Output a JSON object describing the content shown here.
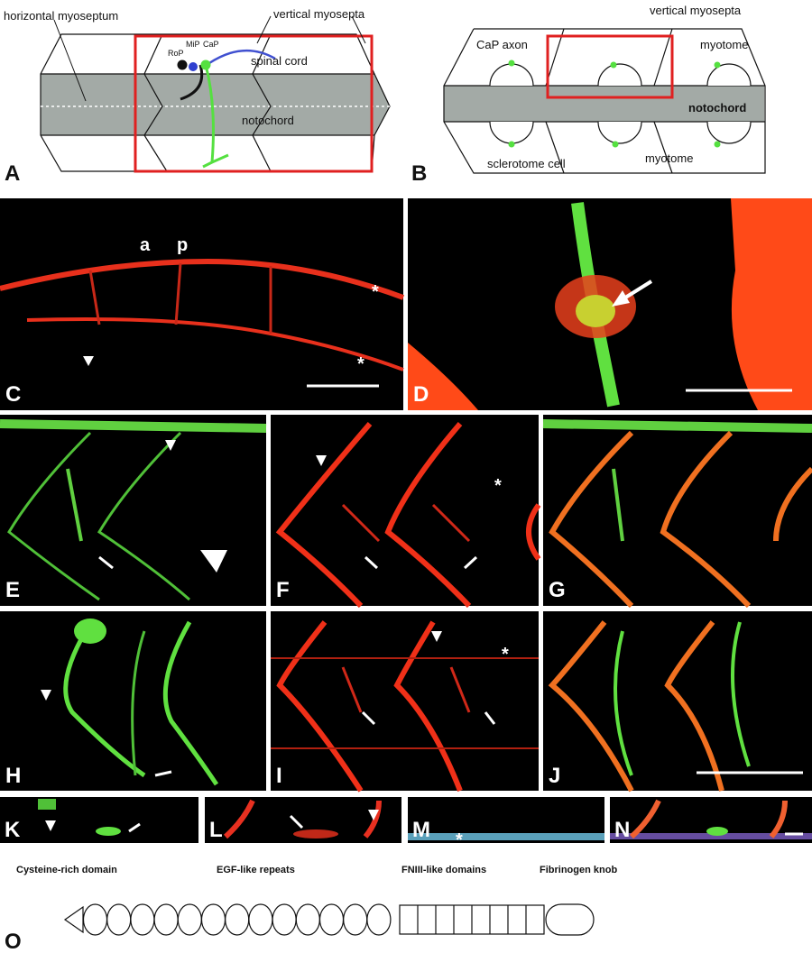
{
  "panel_a": {
    "letter": "A",
    "horizontal_myoseptum": "horizontal myoseptum",
    "vertical_myosepta": "vertical myosepta",
    "rop": "RoP",
    "mip": "MiP",
    "cap": "CaP",
    "spinal_cord": "spinal cord",
    "notochord": "notochord"
  },
  "panel_b": {
    "letter": "B",
    "vertical_myosepta": "vertical myosepta",
    "cap_axon": "CaP axon",
    "myotome_top": "myotome",
    "notochord": "notochord",
    "sclerotome_cell": "sclerotome cell",
    "myotome_bottom": "myotome"
  },
  "panel_c": {
    "letter": "C",
    "anterior": "a",
    "posterior": "p",
    "asterisk_top": "*",
    "asterisk_bottom": "*"
  },
  "panel_d": {
    "letter": "D"
  },
  "panel_e": {
    "letter": "E"
  },
  "panel_f": {
    "letter": "F",
    "asterisk": "*"
  },
  "panel_g": {
    "letter": "G"
  },
  "panel_h": {
    "letter": "H"
  },
  "panel_i": {
    "letter": "I",
    "asterisk": "*"
  },
  "panel_j": {
    "letter": "J"
  },
  "panel_k": {
    "letter": "K"
  },
  "panel_l": {
    "letter": "L"
  },
  "panel_m": {
    "letter": "M",
    "asterisk": "*"
  },
  "panel_n": {
    "letter": "N"
  },
  "panel_o": {
    "letter": "O",
    "cysteine": "Cysteine-rich domain",
    "egf": "EGF-like repeats",
    "fniii": "FNIII-like domains",
    "fibrinogen": "Fibrinogen knob"
  }
}
